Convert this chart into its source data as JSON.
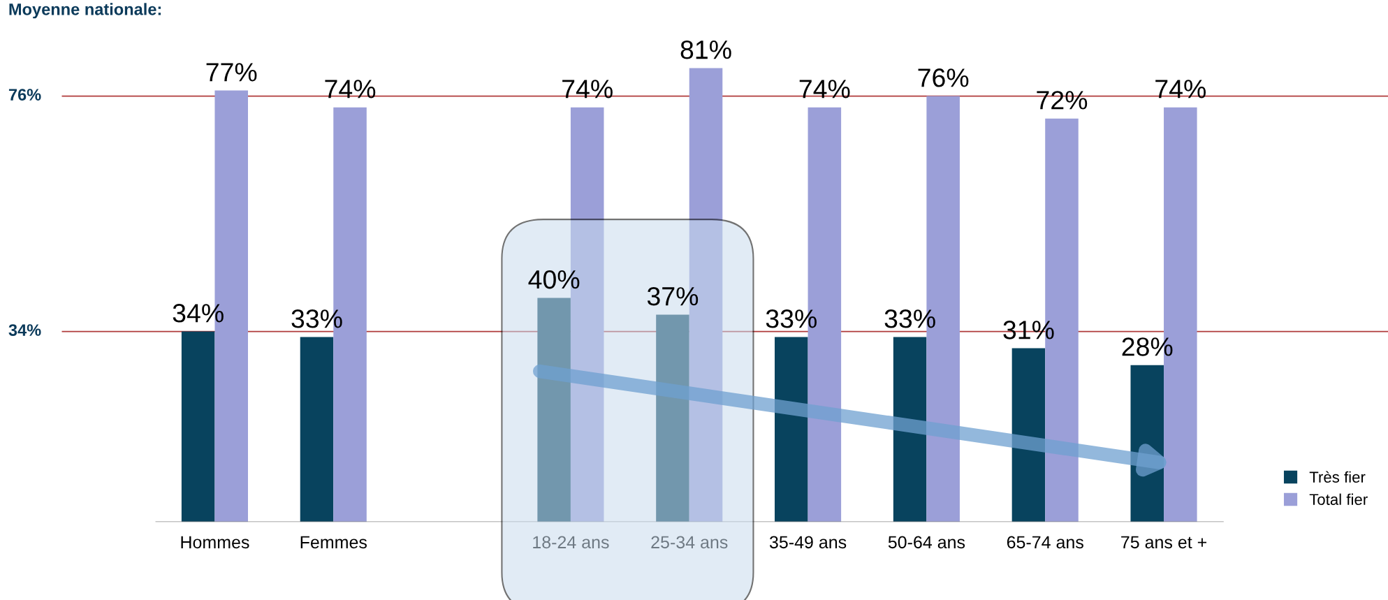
{
  "chart_data": {
    "type": "bar",
    "categories": [
      "Hommes",
      "Femmes",
      null,
      "18-24 ans",
      "25-34 ans",
      "35-49 ans",
      "50-64 ans",
      "65-74 ans",
      "75 ans et +"
    ],
    "series": [
      {
        "name": "Très fier",
        "color": "#08435e",
        "values": [
          34,
          33,
          null,
          40,
          37,
          33,
          33,
          31,
          28
        ],
        "value_labels": [
          "34%",
          "33%",
          null,
          "40%",
          "37%",
          "33%",
          "33%",
          "31%",
          "28%"
        ]
      },
      {
        "name": "Total fier",
        "color": "#9b9fd8",
        "values": [
          77,
          74,
          null,
          74,
          81,
          74,
          76,
          72,
          74
        ],
        "value_labels": [
          "77%",
          "74%",
          null,
          "74%",
          "81%",
          "74%",
          "76%",
          "72%",
          "74%"
        ]
      }
    ],
    "tick_labels": "x",
    "grid": false,
    "legend": "bottom right",
    "ref_lines": [
      {
        "axis": "y",
        "value": 76,
        "label": "76%",
        "color": "#b03a3a"
      },
      {
        "axis": "y",
        "value": 34,
        "label": "34%",
        "color": "#b03a3a"
      }
    ],
    "annotations": [
      "Moyenne nationale:"
    ]
  }
}
